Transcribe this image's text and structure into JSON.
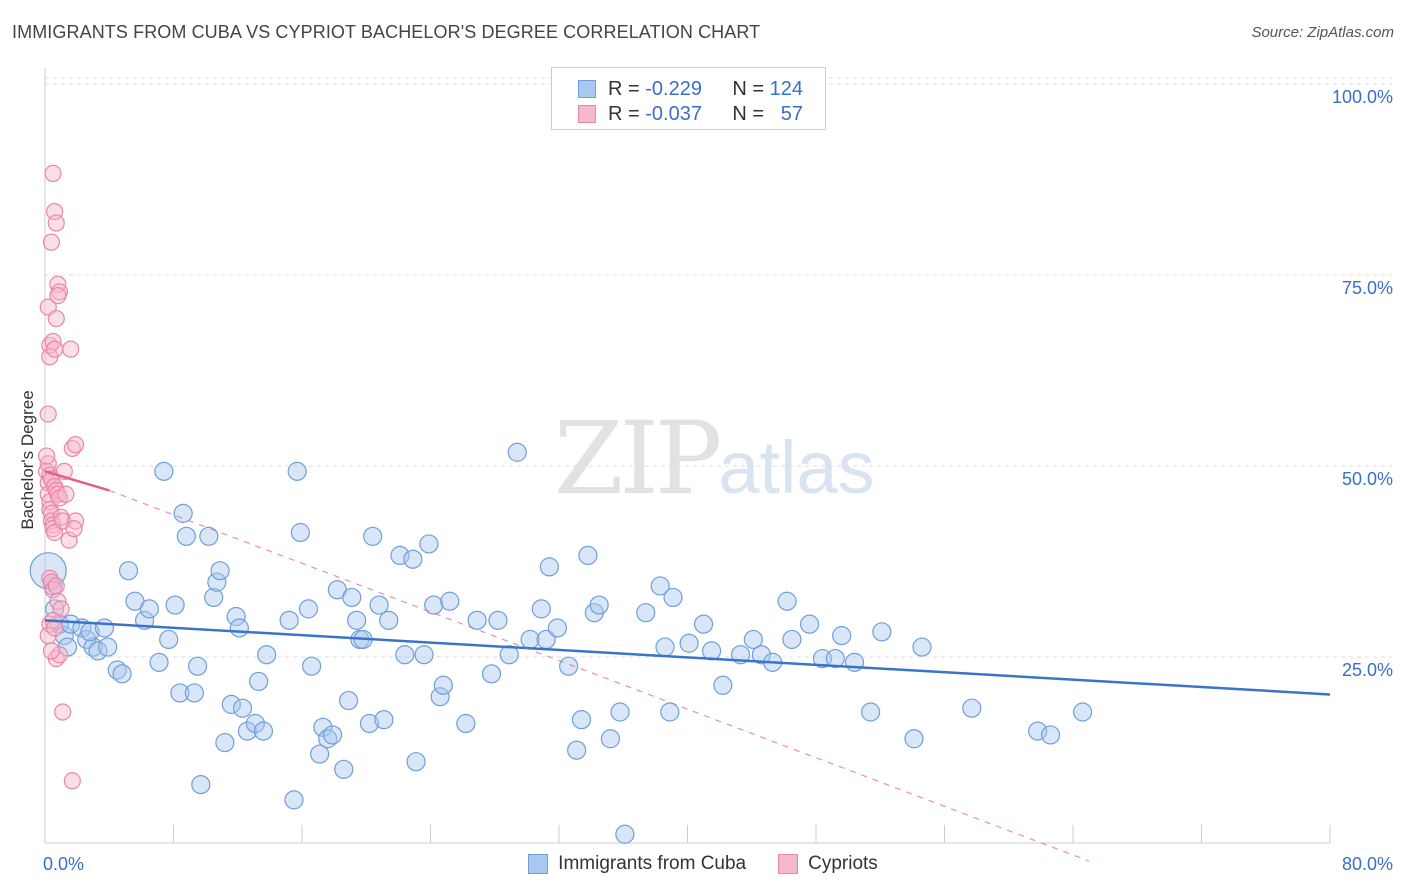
{
  "title": "IMMIGRANTS FROM CUBA VS CYPRIOT BACHELOR'S DEGREE CORRELATION CHART",
  "source": "Source: ZipAtlas.com",
  "watermark": {
    "zip": "ZIP",
    "atlas": "atlas"
  },
  "legend": {
    "blue": {
      "r_label": "R =",
      "r_value": "-0.229",
      "n_label": "N =",
      "n_value": "124"
    },
    "pink": {
      "r_label": "R =",
      "r_value": "-0.037",
      "n_label": "N =",
      "n_value": "57"
    }
  },
  "colors": {
    "blue_fill": "#a8c8ef",
    "blue_stroke": "#6f9fd8",
    "blue_line": "#3a74c9",
    "pink_fill": "#f6b8cb",
    "pink_stroke": "#ea86a6",
    "pink_line": "#e0608a",
    "axis_label": "#3a6fc7",
    "grid": "#dddddd"
  },
  "chart_data": {
    "type": "scatter",
    "title": "IMMIGRANTS FROM CUBA VS CYPRIOT BACHELOR'S DEGREE CORRELATION CHART",
    "xlabel": "",
    "ylabel": "Bachelor's Degree",
    "xlim": [
      0,
      80
    ],
    "ylim": [
      0,
      104
    ],
    "x_tick_labels": [
      "0.0%",
      "80.0%"
    ],
    "y_ticks": [
      25,
      50,
      75,
      100
    ],
    "y_tick_labels": [
      "25.0%",
      "50.0%",
      "75.0%",
      "100.0%"
    ],
    "series": [
      {
        "name": "Immigrants from Cuba",
        "color": "blue",
        "trend": {
          "x0": 0,
          "y0": 31.5,
          "x1": 80,
          "y1": 21.8
        },
        "points": [
          [
            0.5,
            36
          ],
          [
            0.6,
            33
          ],
          [
            0.9,
            31
          ],
          [
            1.2,
            29.5
          ],
          [
            1.4,
            28
          ],
          [
            1.6,
            31
          ],
          [
            2.3,
            30.5
          ],
          [
            2.6,
            29
          ],
          [
            3.0,
            28
          ],
          [
            3.3,
            27.5
          ],
          [
            2.8,
            30
          ],
          [
            3.7,
            30.5
          ],
          [
            3.9,
            28
          ],
          [
            4.5,
            25
          ],
          [
            4.8,
            24.5
          ],
          [
            5.2,
            38
          ],
          [
            5.6,
            34
          ],
          [
            6.2,
            31.5
          ],
          [
            6.5,
            33
          ],
          [
            7.1,
            26
          ],
          [
            7.4,
            51
          ],
          [
            7.7,
            29
          ],
          [
            8.1,
            33.5
          ],
          [
            8.4,
            22
          ],
          [
            8.6,
            45.5
          ],
          [
            8.8,
            42.5
          ],
          [
            9.3,
            22
          ],
          [
            9.7,
            10
          ],
          [
            9.5,
            25.5
          ],
          [
            10.2,
            42.5
          ],
          [
            10.5,
            34.5
          ],
          [
            10.7,
            36.5
          ],
          [
            10.9,
            38
          ],
          [
            11.2,
            15.5
          ],
          [
            11.6,
            20.5
          ],
          [
            11.9,
            32
          ],
          [
            12.1,
            30.5
          ],
          [
            12.3,
            20
          ],
          [
            12.6,
            17
          ],
          [
            13.1,
            18
          ],
          [
            13.3,
            23.5
          ],
          [
            13.6,
            17
          ],
          [
            13.8,
            27
          ],
          [
            15.2,
            31.5
          ],
          [
            15.5,
            8
          ],
          [
            15.7,
            51
          ],
          [
            15.9,
            43
          ],
          [
            16.4,
            33
          ],
          [
            16.6,
            25.5
          ],
          [
            17.1,
            14
          ],
          [
            17.3,
            17.5
          ],
          [
            17.6,
            16
          ],
          [
            17.9,
            16.5
          ],
          [
            18.2,
            35.5
          ],
          [
            18.6,
            12
          ],
          [
            18.9,
            21
          ],
          [
            19.1,
            34.5
          ],
          [
            19.4,
            31.5
          ],
          [
            19.6,
            29
          ],
          [
            19.8,
            29
          ],
          [
            20.2,
            18
          ],
          [
            20.4,
            42.5
          ],
          [
            20.8,
            33.5
          ],
          [
            21.1,
            18.5
          ],
          [
            21.4,
            31.5
          ],
          [
            22.1,
            40
          ],
          [
            22.4,
            27
          ],
          [
            22.9,
            39.5
          ],
          [
            23.1,
            13
          ],
          [
            23.6,
            27
          ],
          [
            23.9,
            41.5
          ],
          [
            24.2,
            33.5
          ],
          [
            24.6,
            21.5
          ],
          [
            24.8,
            23
          ],
          [
            25.2,
            34
          ],
          [
            26.2,
            18
          ],
          [
            26.9,
            31.5
          ],
          [
            27.8,
            24.5
          ],
          [
            28.2,
            31.5
          ],
          [
            28.9,
            27
          ],
          [
            29.4,
            53.5
          ],
          [
            30.2,
            29
          ],
          [
            30.9,
            33
          ],
          [
            31.2,
            29
          ],
          [
            31.4,
            38.5
          ],
          [
            31.9,
            30.5
          ],
          [
            32.6,
            25.5
          ],
          [
            33.1,
            14.5
          ],
          [
            33.4,
            18.5
          ],
          [
            33.8,
            40
          ],
          [
            34.2,
            32.5
          ],
          [
            34.5,
            33.5
          ],
          [
            35.2,
            16
          ],
          [
            35.8,
            19.5
          ],
          [
            36.1,
            3.5
          ],
          [
            37.4,
            32.5
          ],
          [
            38.3,
            36
          ],
          [
            38.6,
            28
          ],
          [
            38.9,
            19.5
          ],
          [
            39.1,
            34.5
          ],
          [
            40.1,
            28.5
          ],
          [
            41.0,
            31
          ],
          [
            41.5,
            27.5
          ],
          [
            42.2,
            23
          ],
          [
            43.3,
            27
          ],
          [
            44.1,
            29
          ],
          [
            44.6,
            27
          ],
          [
            45.3,
            26
          ],
          [
            46.2,
            34
          ],
          [
            46.5,
            29
          ],
          [
            47.6,
            31
          ],
          [
            48.4,
            26.5
          ],
          [
            49.2,
            26.5
          ],
          [
            49.6,
            29.5
          ],
          [
            50.4,
            26
          ],
          [
            51.4,
            19.5
          ],
          [
            52.1,
            30
          ],
          [
            54.1,
            16
          ],
          [
            54.6,
            28
          ],
          [
            57.7,
            20
          ],
          [
            61.8,
            17
          ],
          [
            62.6,
            16.5
          ],
          [
            64.6,
            19.5
          ],
          [
            0.2,
            38
          ]
        ]
      },
      {
        "name": "Cypriots",
        "color": "pink",
        "trend": {
          "x0": 0,
          "y0": 51,
          "x1": 4,
          "y1": 48.5
        },
        "dashed_trend": {
          "x0": 4,
          "y0": 48.5,
          "x1": 65,
          "y1": 0
        },
        "points": [
          [
            0.1,
            51
          ],
          [
            0.2,
            49.5
          ],
          [
            0.2,
            48
          ],
          [
            0.3,
            47
          ],
          [
            0.3,
            46
          ],
          [
            0.4,
            45.5
          ],
          [
            0.4,
            44.5
          ],
          [
            0.5,
            44
          ],
          [
            0.5,
            43.5
          ],
          [
            0.6,
            43
          ],
          [
            0.2,
            52
          ],
          [
            0.1,
            53
          ],
          [
            0.3,
            50.5
          ],
          [
            0.4,
            50
          ],
          [
            0.6,
            49
          ],
          [
            0.7,
            48.5
          ],
          [
            0.8,
            48
          ],
          [
            0.9,
            47.5
          ],
          [
            1.0,
            45
          ],
          [
            1.1,
            44.5
          ],
          [
            0.2,
            58.5
          ],
          [
            0.2,
            72.5
          ],
          [
            0.3,
            67.5
          ],
          [
            0.3,
            66
          ],
          [
            0.4,
            81
          ],
          [
            0.5,
            90
          ],
          [
            0.6,
            85
          ],
          [
            0.7,
            83.5
          ],
          [
            0.8,
            75.5
          ],
          [
            0.9,
            74.5
          ],
          [
            0.7,
            71
          ],
          [
            0.5,
            68
          ],
          [
            0.6,
            67
          ],
          [
            0.8,
            74
          ],
          [
            1.2,
            51
          ],
          [
            1.3,
            48
          ],
          [
            1.5,
            42
          ],
          [
            1.6,
            67
          ],
          [
            1.7,
            54
          ],
          [
            1.9,
            54.5
          ],
          [
            1.9,
            44.5
          ],
          [
            1.8,
            43.5
          ],
          [
            0.3,
            37
          ],
          [
            0.4,
            36.5
          ],
          [
            0.5,
            35.5
          ],
          [
            0.7,
            36
          ],
          [
            0.8,
            34
          ],
          [
            1.0,
            33
          ],
          [
            0.3,
            31
          ],
          [
            0.5,
            31.5
          ],
          [
            0.2,
            29.5
          ],
          [
            0.6,
            30.5
          ],
          [
            0.7,
            26.5
          ],
          [
            1.1,
            19.5
          ],
          [
            1.7,
            10.5
          ],
          [
            0.9,
            27
          ],
          [
            0.4,
            27.5
          ]
        ]
      }
    ]
  },
  "bottom_legend": {
    "blue": "Immigrants from Cuba",
    "pink": "Cypriots"
  }
}
